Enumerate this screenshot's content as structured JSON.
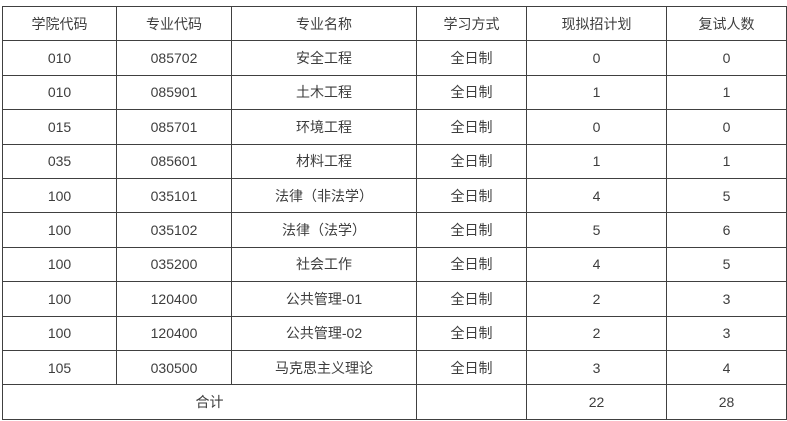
{
  "table": {
    "headers": [
      "学院代码",
      "专业代码",
      "专业名称",
      "学习方式",
      "现拟招计划",
      "复试人数"
    ],
    "rows": [
      [
        "010",
        "085702",
        "安全工程",
        "全日制",
        "0",
        "0"
      ],
      [
        "010",
        "085901",
        "土木工程",
        "全日制",
        "1",
        "1"
      ],
      [
        "015",
        "085701",
        "环境工程",
        "全日制",
        "0",
        "0"
      ],
      [
        "035",
        "085601",
        "材料工程",
        "全日制",
        "1",
        "1"
      ],
      [
        "100",
        "035101",
        "法律（非法学）",
        "全日制",
        "4",
        "5"
      ],
      [
        "100",
        "035102",
        "法律（法学）",
        "全日制",
        "5",
        "6"
      ],
      [
        "100",
        "035200",
        "社会工作",
        "全日制",
        "4",
        "5"
      ],
      [
        "100",
        "120400",
        "公共管理-01",
        "全日制",
        "2",
        "3"
      ],
      [
        "100",
        "120400",
        "公共管理-02",
        "全日制",
        "2",
        "3"
      ],
      [
        "105",
        "030500",
        "马克思主义理论",
        "全日制",
        "3",
        "4"
      ]
    ],
    "footer": {
      "label": "合计",
      "study_mode": "",
      "planned_total": "22",
      "retest_total": "28"
    }
  },
  "colors": {
    "border": "#404040",
    "text": "#3d3d3d",
    "background": "#ffffff"
  }
}
